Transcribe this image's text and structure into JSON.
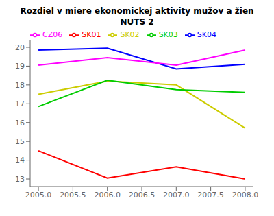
{
  "chart_data": {
    "type": "line",
    "title": "Rozdiel v miere ekonomickej aktivity mužov a žien",
    "subtitle": "NUTS 2",
    "x": [
      2005,
      2006,
      2007,
      2008
    ],
    "series": [
      {
        "name": "SK01",
        "color": "#FF0000",
        "values": [
          14.5,
          13.05,
          13.65,
          13.0
        ]
      },
      {
        "name": "SK02",
        "color": "#CCCC00",
        "values": [
          17.5,
          18.2,
          18.0,
          15.7
        ]
      },
      {
        "name": "SK03",
        "color": "#00CC00",
        "values": [
          16.85,
          18.25,
          17.75,
          17.6
        ]
      },
      {
        "name": "SK04",
        "color": "#0000FF",
        "values": [
          19.85,
          19.95,
          18.85,
          19.1
        ]
      },
      {
        "name": "CZ06",
        "color": "#FF00FF",
        "values": [
          19.05,
          19.45,
          19.05,
          19.85
        ]
      }
    ],
    "xlim": [
      2004.88,
      2008.12
    ],
    "ylim": [
      12.6,
      20.4
    ],
    "xticks": [
      {
        "value": 2005,
        "label": "2005.0"
      },
      2005.5,
      {
        "value": 2006,
        "label": "2006.0"
      },
      2006.5,
      {
        "value": 2007,
        "label": "2007.0"
      },
      2007.5,
      {
        "value": 2008,
        "label": "2008.0"
      }
    ],
    "yticks": [
      13,
      14,
      15,
      16,
      17,
      18,
      19,
      20
    ],
    "grid": false,
    "legend": "upper left"
  }
}
